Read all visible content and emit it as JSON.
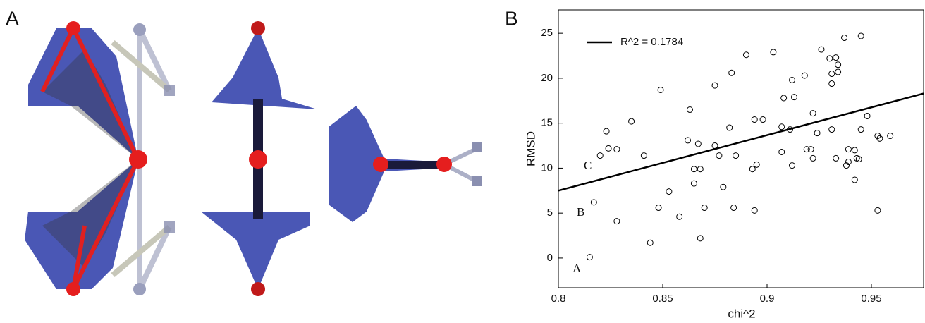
{
  "panel_a": {
    "label": "A"
  },
  "chart_data": {
    "type": "scatter",
    "panel_label": "B",
    "x_label": "chi^2",
    "y_label": "RMSD",
    "annotations": [
      "C",
      "B",
      "A"
    ],
    "xlim": [
      0.8,
      0.975
    ],
    "xticks": [
      0.8,
      0.85,
      0.9,
      0.95
    ],
    "ylim": [
      -3.3,
      27.6
    ],
    "yticks": [
      0,
      5,
      10,
      15,
      20,
      25
    ],
    "series": [
      {
        "name": "R^2 = 0.1784",
        "type": "line",
        "color": "#000000",
        "x": [
          0.8,
          0.975
        ],
        "values": [
          7.5,
          18.3
        ]
      },
      {
        "type": "scatter",
        "color": "#000000",
        "x": [
          0.815,
          0.817,
          0.82,
          0.823,
          0.824,
          0.828,
          0.828,
          0.835,
          0.841,
          0.844,
          0.848,
          0.849,
          0.853,
          0.858,
          0.862,
          0.863,
          0.865,
          0.865,
          0.867,
          0.868,
          0.868,
          0.87,
          0.875,
          0.875,
          0.877,
          0.879,
          0.882,
          0.883,
          0.884,
          0.885,
          0.89,
          0.893,
          0.894,
          0.894,
          0.895,
          0.898,
          0.903,
          0.907,
          0.907,
          0.908,
          0.911,
          0.912,
          0.912,
          0.913,
          0.918,
          0.919,
          0.921,
          0.922,
          0.922,
          0.924,
          0.926,
          0.93,
          0.931,
          0.931,
          0.931,
          0.933,
          0.933,
          0.934,
          0.934,
          0.937,
          0.938,
          0.939,
          0.939,
          0.942,
          0.942,
          0.943,
          0.944,
          0.945,
          0.945,
          0.948,
          0.953,
          0.953,
          0.954,
          0.959
        ],
        "values": [
          0.1,
          6.2,
          11.4,
          14.1,
          12.2,
          12.1,
          4.1,
          15.2,
          11.4,
          1.7,
          5.6,
          18.7,
          7.4,
          4.6,
          13.1,
          16.5,
          9.9,
          8.3,
          12.7,
          9.9,
          2.2,
          5.6,
          19.2,
          12.5,
          11.4,
          7.9,
          14.5,
          20.6,
          5.6,
          11.4,
          22.6,
          9.9,
          15.4,
          5.3,
          10.4,
          15.4,
          22.9,
          14.6,
          11.8,
          17.8,
          14.3,
          19.8,
          10.3,
          17.9,
          20.3,
          12.1,
          12.1,
          11.1,
          16.1,
          13.9,
          23.2,
          22.2,
          19.4,
          20.5,
          14.3,
          11.1,
          22.3,
          20.7,
          21.5,
          24.5,
          10.3,
          10.7,
          12.1,
          8.7,
          12.0,
          11.1,
          11.0,
          14.3,
          24.7,
          15.8,
          5.3,
          13.6,
          13.3,
          13.6
        ]
      }
    ]
  }
}
